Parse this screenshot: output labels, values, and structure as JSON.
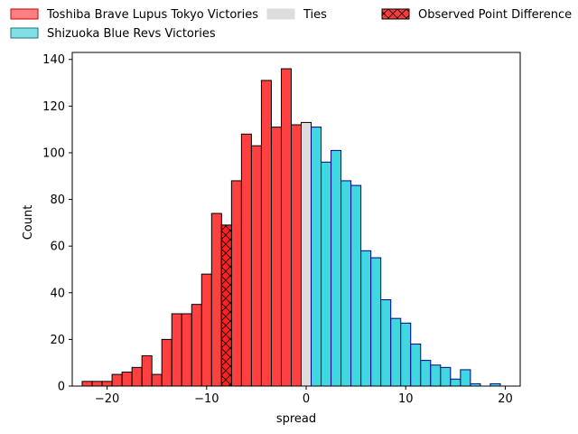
{
  "chart_data": {
    "type": "bar",
    "title": "",
    "xlabel": "spread",
    "ylabel": "Count",
    "xlim": [
      -23.5,
      21.5
    ],
    "ylim": [
      0,
      143
    ],
    "grid": false,
    "xticks": [
      -20,
      -10,
      0,
      10,
      20
    ],
    "yticks": [
      0,
      20,
      40,
      60,
      80,
      100,
      120,
      140
    ],
    "bin_width": 1,
    "legend": {
      "placement": "top",
      "entries": [
        {
          "label": "Toshiba Brave Lupus Tokyo Victories",
          "color": "#ff8080",
          "edge": "#cc0000"
        },
        {
          "label": "Shizuoka Blue Revs Victories",
          "color": "#80e0e6",
          "edge": "#1f6f7a"
        },
        {
          "label": "Ties",
          "color": "#dddddd",
          "edge": "#dddddd"
        },
        {
          "label": "Observed Point Difference",
          "color": "#ff3a3a",
          "edge": "#000000",
          "hatch": "x"
        }
      ]
    },
    "series": [
      {
        "name": "Toshiba Brave Lupus Tokyo Victories",
        "color": "#ff4040",
        "edge": "#000000",
        "x": [
          -22,
          -21,
          -20,
          -19,
          -18,
          -17,
          -16,
          -15,
          -14,
          -13,
          -12,
          -11,
          -10,
          -9,
          -8,
          -7,
          -6,
          -5,
          -4,
          -3,
          -2,
          -1
        ],
        "values": [
          2,
          2,
          2,
          5,
          6,
          8,
          13,
          5,
          20,
          31,
          31,
          35,
          48,
          74,
          69,
          88,
          108,
          103,
          131,
          111,
          136,
          112
        ]
      },
      {
        "name": "Ties",
        "color": "#dddddd",
        "edge": "#000000",
        "x": [
          0
        ],
        "values": [
          113
        ]
      },
      {
        "name": "Shizuoka Blue Revs Victories",
        "color": "#40d8e0",
        "edge": "#000080",
        "x": [
          1,
          2,
          3,
          4,
          5,
          6,
          7,
          8,
          9,
          10,
          11,
          12,
          13,
          14,
          15,
          16,
          17,
          18,
          19
        ],
        "values": [
          111,
          96,
          101,
          88,
          86,
          58,
          55,
          37,
          29,
          27,
          18,
          11,
          9,
          8,
          3,
          7,
          1,
          0,
          1
        ]
      }
    ],
    "observed": {
      "name": "Observed Point Difference",
      "x": -8,
      "value": 69
    }
  }
}
